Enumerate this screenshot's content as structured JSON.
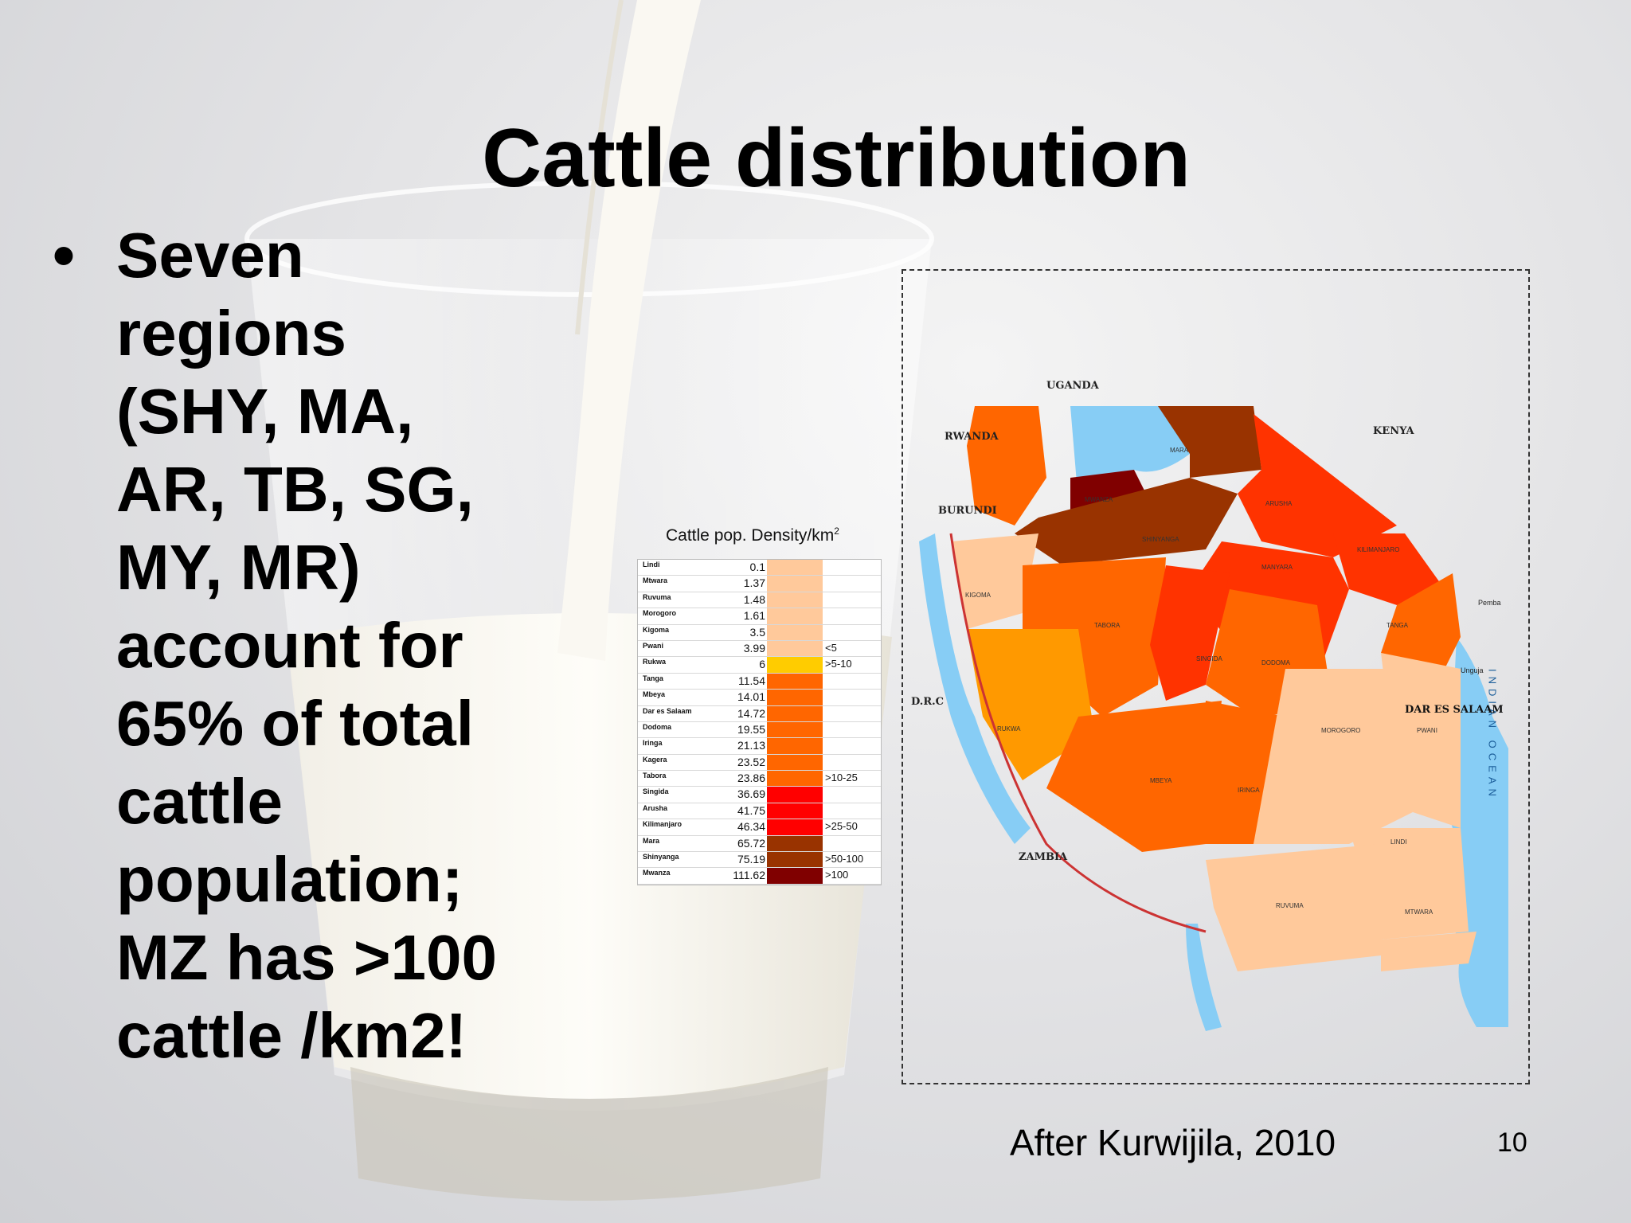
{
  "slide": {
    "title": "Cattle distribution",
    "bullet_symbol": "•",
    "bullet_text": "Seven\nregions\n(SHY, MA,\nAR, TB, SG,\nMY, MR)\naccount for\n65% of total\ncattle\npopulation;\nMZ has >100\ncattle /km2!",
    "source": "After Kurwijila, 2010",
    "page_number": "10"
  },
  "legend": {
    "title_main": "Cattle pop. Density/km",
    "title_sup": "2",
    "rows": [
      {
        "name": "Lindi",
        "value": "0.1",
        "band": "",
        "color": "#ffc99b"
      },
      {
        "name": "Mtwara",
        "value": "1.37",
        "band": "",
        "color": "#ffc99b"
      },
      {
        "name": "Ruvuma",
        "value": "1.48",
        "band": "",
        "color": "#ffc99b"
      },
      {
        "name": "Morogoro",
        "value": "1.61",
        "band": "",
        "color": "#ffc99b"
      },
      {
        "name": "Kigoma",
        "value": "3.5",
        "band": "",
        "color": "#ffc99b"
      },
      {
        "name": "Pwani",
        "value": "3.99",
        "band": "<5",
        "color": "#ffc99b"
      },
      {
        "name": "Rukwa",
        "value": "6",
        "band": ">5-10",
        "color": "#ffcc00"
      },
      {
        "name": "Tanga",
        "value": "11.54",
        "band": "",
        "color": "#ff6600"
      },
      {
        "name": "Mbeya",
        "value": "14.01",
        "band": "",
        "color": "#ff6600"
      },
      {
        "name": "Dar es Salaam",
        "value": "14.72",
        "band": "",
        "color": "#ff6600"
      },
      {
        "name": "Dodoma",
        "value": "19.55",
        "band": "",
        "color": "#ff6600"
      },
      {
        "name": "Iringa",
        "value": "21.13",
        "band": "",
        "color": "#ff6600"
      },
      {
        "name": "Kagera",
        "value": "23.52",
        "band": "",
        "color": "#ff6600"
      },
      {
        "name": "Tabora",
        "value": "23.86",
        "band": ">10-25",
        "color": "#ff6600"
      },
      {
        "name": "Singida",
        "value": "36.69",
        "band": "",
        "color": "#ff0000"
      },
      {
        "name": "Arusha",
        "value": "41.75",
        "band": "",
        "color": "#ff0000"
      },
      {
        "name": "Kilimanjaro",
        "value": "46.34",
        "band": ">25-50",
        "color": "#ff0000"
      },
      {
        "name": "Mara",
        "value": "65.72",
        "band": "",
        "color": "#993300"
      },
      {
        "name": "Shinyanga",
        "value": "75.19",
        "band": ">50-100",
        "color": "#993300"
      },
      {
        "name": "Mwanza",
        "value": "111.62",
        "band": ">100",
        "color": "#800000"
      }
    ]
  },
  "map": {
    "neighbors": [
      "UGANDA",
      "KENYA",
      "RWANDA",
      "BURUNDI",
      "D.R.C",
      "ZAMBIA"
    ],
    "ocean": "INDIAN OCEAN",
    "islands": [
      "Pemba",
      "Unguja"
    ],
    "capital": "DAR ES SALAAM",
    "regions": [
      "MARA",
      "MWANZA",
      "SHINYANGA",
      "ARUSHA",
      "KILIMANJARO",
      "KIGOMA",
      "TABORA",
      "MANYARA",
      "SINGIDA",
      "DODOMA",
      "TANGA",
      "RUKWA",
      "MBEYA",
      "IRINGA",
      "MOROGORO",
      "PWANI",
      "LINDI",
      "RUVUMA",
      "MTWARA"
    ],
    "colors": {
      "lake": "#87cdf5",
      "lt5": "#ffc99b",
      "r5_10": "#ff9900",
      "r10_25": "#ff6600",
      "r25_50": "#ff3300",
      "r50_100": "#993300",
      "gt100": "#800000"
    }
  }
}
